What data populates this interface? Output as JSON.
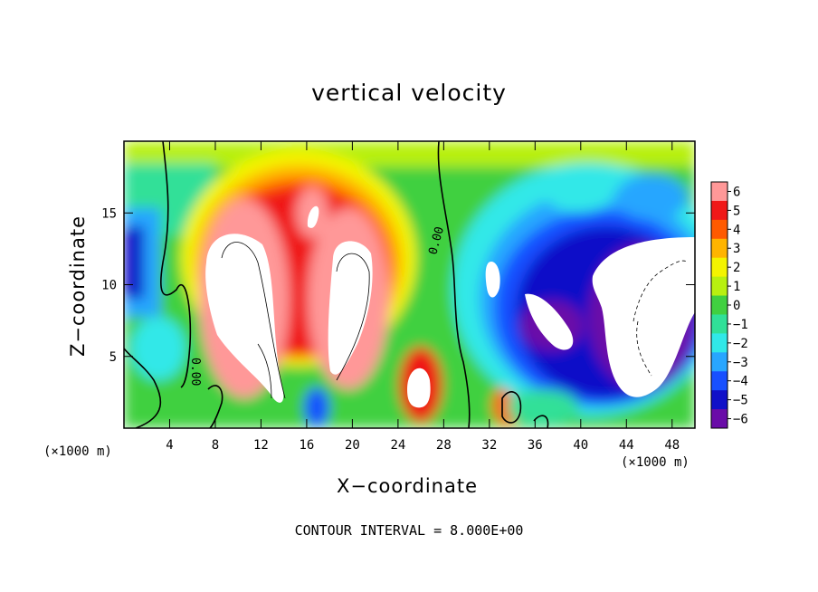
{
  "chart_data": {
    "type": "heatmap",
    "title": "vertical velocity",
    "xlabel": "X−coordinate",
    "ylabel": "Z−coordinate",
    "x_unit_label": "(×1000 m)",
    "x_unit_label_right": "(×1000 m)",
    "xlim": [
      0,
      50
    ],
    "ylim": [
      0,
      20
    ],
    "x_ticks": [
      4,
      8,
      12,
      16,
      20,
      24,
      28,
      32,
      36,
      40,
      44,
      48
    ],
    "y_ticks": [
      5,
      10,
      15
    ],
    "colorbar": {
      "ticks": [
        "6",
        "5",
        "4",
        "3",
        "2",
        "1",
        "0",
        "−1",
        "−2",
        "−3",
        "−4",
        "−5",
        "−6"
      ],
      "range": [
        -6,
        6
      ]
    },
    "contour_label": "0.00",
    "footer": "CONTOUR INTERVAL = 8.000E+00",
    "colors": {
      "n6": "#6a0ca8",
      "n5": "#1010c8",
      "n4": "#1850ff",
      "n3": "#28a6ff",
      "n2": "#30e8e8",
      "n1": "#30e098",
      "z0": "#40d040",
      "p1": "#b8f010",
      "p2": "#f4f400",
      "p3": "#ffb400",
      "p4": "#ff5a00",
      "p5": "#f01818",
      "p6": "#ff9898"
    },
    "grid": false
  }
}
